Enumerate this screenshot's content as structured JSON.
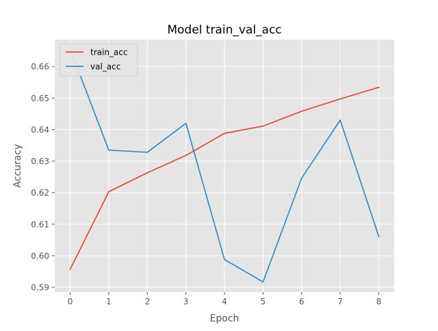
{
  "chart_data": {
    "type": "line",
    "title": "Model train_val_acc",
    "xlabel": "Epoch",
    "ylabel": "Accuracy",
    "x": [
      0,
      1,
      2,
      3,
      4,
      5,
      6,
      7,
      8
    ],
    "xlim": [
      -0.4,
      8.4
    ],
    "ylim": [
      0.5885,
      0.6685
    ],
    "xticks": [
      "0",
      "1",
      "2",
      "3",
      "4",
      "5",
      "6",
      "7",
      "8"
    ],
    "yticks": [
      0.59,
      0.6,
      0.61,
      0.62,
      0.63,
      0.64,
      0.65,
      0.66
    ],
    "ytick_labels": [
      "0.59",
      "0.60",
      "0.61",
      "0.62",
      "0.63",
      "0.64",
      "0.65",
      "0.66"
    ],
    "grid": true,
    "legend_position": "top-left",
    "series": [
      {
        "name": "train_acc",
        "color": "#E24A33",
        "values": [
          0.5957,
          0.6203,
          0.6263,
          0.6318,
          0.6388,
          0.6411,
          0.6458,
          0.6497,
          0.6534
        ]
      },
      {
        "name": "val_acc",
        "color": "#348ABD",
        "values": [
          0.6655,
          0.6335,
          0.6328,
          0.642,
          0.5988,
          0.5917,
          0.6246,
          0.643,
          0.6061
        ]
      }
    ]
  }
}
